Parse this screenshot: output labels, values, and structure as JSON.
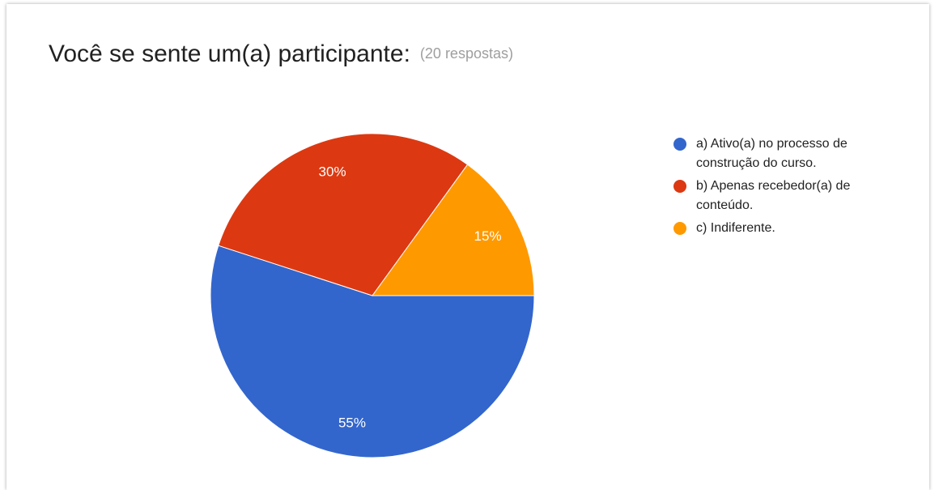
{
  "chart_data": {
    "type": "pie",
    "title": "Você se sente um(a) participante:",
    "subtitle": "(20 respostas)",
    "categories": [
      "a) Ativo(a) no processo de construção do curso.",
      "b) Apenas recebedor(a) de conteúdo.",
      "c) Indiferente."
    ],
    "values": [
      55,
      30,
      15
    ],
    "value_labels": [
      "55%",
      "30%",
      "15%"
    ],
    "colors": [
      "#3366cc",
      "#dc3912",
      "#ff9900"
    ],
    "legend": "right"
  }
}
